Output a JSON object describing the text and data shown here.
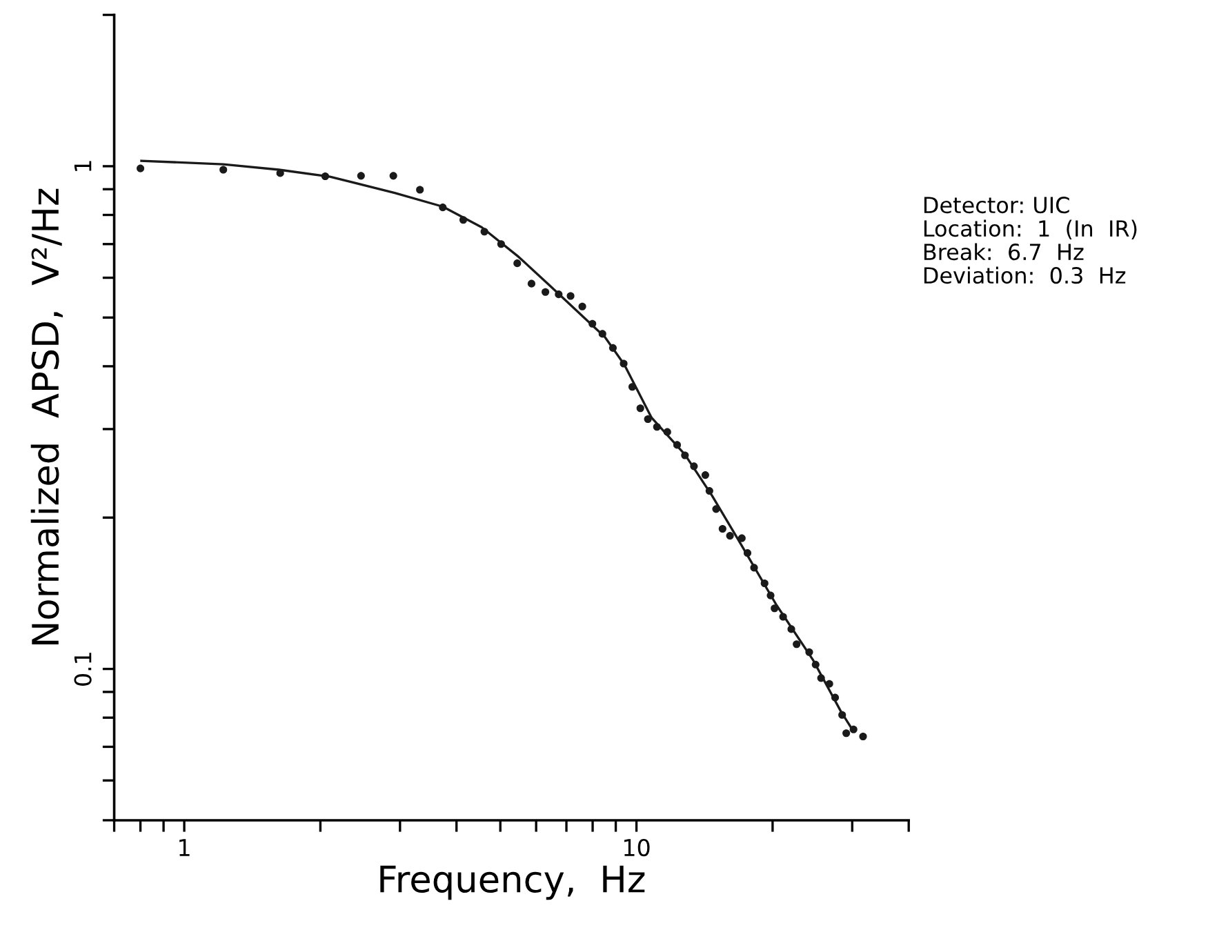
{
  "chart_data": {
    "type": "scatter",
    "xlabel": "Frequency,  Hz",
    "ylabel": "Normalized  APSD,  V²/Hz",
    "log": "xy",
    "xlim": [
      0.7,
      40
    ],
    "ylim": [
      0.05,
      2
    ],
    "xticks": [
      {
        "value": 0.7,
        "label": null
      },
      {
        "value": 0.8,
        "label": null
      },
      {
        "value": 0.9,
        "label": null
      },
      1,
      {
        "value": 2,
        "label": null
      },
      {
        "value": 3,
        "label": null
      },
      {
        "value": 4,
        "label": null
      },
      {
        "value": 5,
        "label": null
      },
      {
        "value": 6,
        "label": null
      },
      {
        "value": 7,
        "label": null
      },
      {
        "value": 8,
        "label": null
      },
      {
        "value": 9,
        "label": null
      },
      10,
      {
        "value": 20,
        "label": null
      },
      {
        "value": 30,
        "label": null
      },
      {
        "value": 40,
        "label": null
      }
    ],
    "yticks": [
      {
        "value": 0.05,
        "label": null
      },
      {
        "value": 0.06,
        "label": null
      },
      {
        "value": 0.07,
        "label": null
      },
      {
        "value": 0.08,
        "label": null
      },
      {
        "value": 0.09,
        "label": null
      },
      0.1,
      {
        "value": 0.2,
        "label": null
      },
      {
        "value": 0.3,
        "label": null
      },
      {
        "value": 0.4,
        "label": null
      },
      {
        "value": 0.5,
        "label": null
      },
      {
        "value": 0.6,
        "label": null
      },
      {
        "value": 0.7,
        "label": null
      },
      {
        "value": 0.8,
        "label": null
      },
      {
        "value": 0.9,
        "label": null
      },
      1,
      {
        "value": 2,
        "label": null
      }
    ],
    "grid": false,
    "annotations": [
      "Detector: UIC",
      "Location:  1  (In  IR)",
      "Break:  6.7  Hz",
      "Deviation:  0.3  Hz"
    ],
    "series": [
      {
        "color": "#1a1a1a",
        "marker": "circle",
        "x": [
          0.8,
          1.22,
          1.63,
          2.05,
          2.46,
          2.9,
          3.32,
          3.73,
          4.14,
          4.61,
          5.02,
          5.45,
          5.86,
          6.29,
          6.73,
          7.15,
          7.59,
          7.99,
          8.41,
          8.87,
          9.37,
          9.79,
          10.2,
          10.6,
          11.1,
          11.7,
          12.3,
          12.8,
          13.4,
          14.2,
          14.5,
          15.0,
          15.5,
          16.1,
          17.1,
          17.6,
          18.2,
          19.2,
          19.8,
          20.2,
          21.1,
          22.0,
          22.6,
          24.1,
          24.9,
          25.6,
          26.7,
          27.5,
          28.5,
          29.1,
          30.2,
          31.7
        ],
        "values": [
          0.99,
          0.984,
          0.969,
          0.955,
          0.957,
          0.957,
          0.898,
          0.828,
          0.782,
          0.741,
          0.7,
          0.641,
          0.584,
          0.562,
          0.556,
          0.552,
          0.526,
          0.486,
          0.464,
          0.435,
          0.405,
          0.364,
          0.33,
          0.314,
          0.303,
          0.296,
          0.279,
          0.266,
          0.253,
          0.243,
          0.226,
          0.208,
          0.19,
          0.184,
          0.182,
          0.17,
          0.159,
          0.148,
          0.14,
          0.132,
          0.127,
          0.12,
          0.112,
          0.108,
          0.102,
          0.0959,
          0.0934,
          0.0877,
          0.081,
          0.0745,
          0.0758,
          0.0734
        ]
      },
      {
        "type": "line",
        "color": "#1a1a1a",
        "marker": "none",
        "line_style": "solid",
        "x": [
          0.804,
          1.22,
          1.62,
          2.1,
          2.92,
          3.73,
          4.55,
          5.49,
          6.47,
          8.52,
          9.4,
          10.8,
          12.8,
          14.7,
          16.9,
          20.4,
          24.6,
          28.3,
          30.0
        ],
        "values": [
          1.025,
          1.009,
          0.984,
          0.953,
          0.885,
          0.831,
          0.756,
          0.66,
          0.576,
          0.457,
          0.403,
          0.316,
          0.267,
          0.221,
          0.179,
          0.134,
          0.104,
          0.0824,
          0.0758
        ]
      }
    ]
  }
}
